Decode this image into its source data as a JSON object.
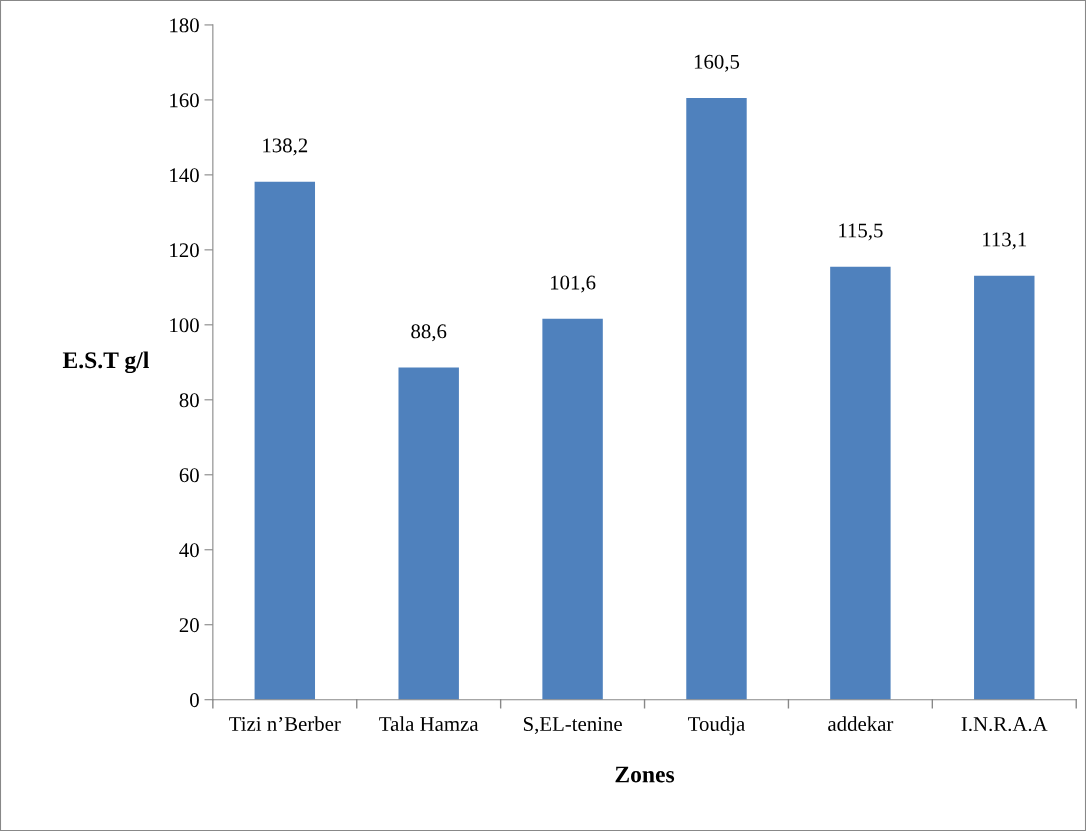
{
  "chart_data": {
    "type": "bar",
    "categories": [
      "Tizi n’Berber",
      "Tala Hamza",
      "S,EL-tenine",
      "Toudja",
      "addekar",
      "I.N.R.A.A"
    ],
    "values": [
      138.2,
      88.6,
      101.6,
      160.5,
      115.5,
      113.1
    ],
    "value_labels": [
      "138,2",
      "88,6",
      "101,6",
      "160,5",
      "115,5",
      "113,1"
    ],
    "color": "#4f81bd",
    "xlabel": "Zones",
    "ylabel": "E.S.T g/l",
    "ylim": [
      0,
      180
    ],
    "yticks": [
      0,
      20,
      40,
      60,
      80,
      100,
      120,
      140,
      160,
      180
    ],
    "grid": false,
    "legend": false
  }
}
